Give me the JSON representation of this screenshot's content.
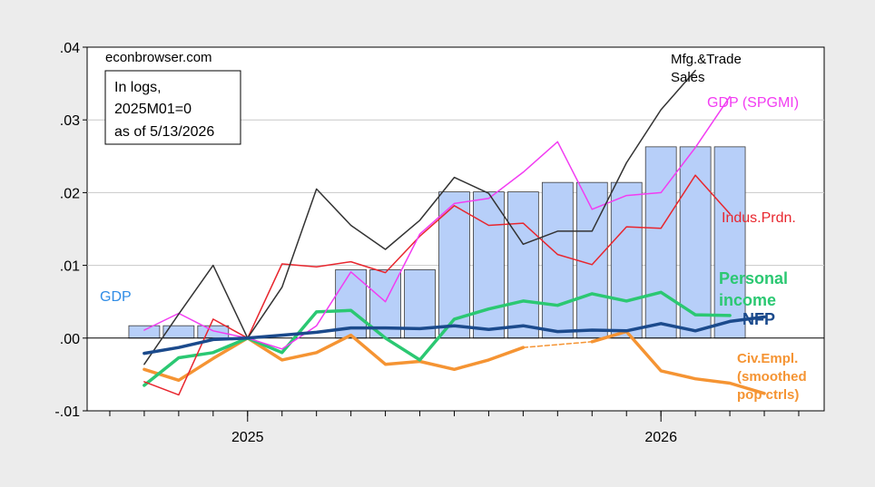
{
  "chart_data": {
    "type": "line",
    "title": "",
    "xlabel": "",
    "ylabel": "",
    "source_note": "econbrowser.com",
    "note_lines": [
      "In logs,",
      "2025M01=0",
      "as of 5/13/2026"
    ],
    "xlim": [
      "2024-09",
      "2026-12"
    ],
    "ylim": [
      -0.01,
      0.04
    ],
    "x_ticks": [
      "2025",
      "2026"
    ],
    "y_ticks": [
      {
        "value": 0.04,
        "label": ".04"
      },
      {
        "value": 0.03,
        "label": ".03"
      },
      {
        "value": 0.02,
        "label": ".02"
      },
      {
        "value": 0.01,
        "label": ".01"
      },
      {
        "value": 0.0,
        "label": ".00"
      },
      {
        "value": -0.01,
        "label": "-.01"
      }
    ],
    "grid": "horizontal",
    "colors": {
      "background": "#ececec",
      "plot_background": "#ffffff",
      "gdp_bar": "#b7cff9",
      "gdp_label": "#2f8ce6",
      "mfg": "#333333",
      "gdp_spgmi": "#f23cf2",
      "indus": "#e8262e",
      "personal_income": "#2bc872",
      "nfp": "#1b4a8c",
      "civ_empl": "#f59433"
    },
    "bars": {
      "name": "GDP",
      "quarters": [
        {
          "x": [
            "2024-10",
            "2024-11",
            "2024-12"
          ],
          "value": 0.0017
        },
        {
          "x": [
            "2025-01",
            "2025-02",
            "2025-03"
          ],
          "value": 0.0
        },
        {
          "x": [
            "2025-04",
            "2025-05",
            "2025-06"
          ],
          "value": 0.0094
        },
        {
          "x": [
            "2025-07",
            "2025-08",
            "2025-09"
          ],
          "value": 0.0201
        },
        {
          "x": [
            "2025-10",
            "2025-11",
            "2025-12"
          ],
          "value": 0.0214
        },
        {
          "x": [
            "2026-01",
            "2026-02",
            "2026-03"
          ],
          "value": 0.0263
        }
      ]
    },
    "series": [
      {
        "key": "mfg",
        "name": "Mfg.&Trade Sales",
        "label_lines": [
          "Mfg.&Trade",
          "Sales"
        ],
        "x": [
          "2024-10",
          "2024-11",
          "2024-12",
          "2025-01",
          "2025-02",
          "2025-03",
          "2025-04",
          "2025-05",
          "2025-06",
          "2025-07",
          "2025-08",
          "2025-09",
          "2025-10",
          "2025-11",
          "2025-12",
          "2026-01",
          "2026-02",
          "2026-03"
        ],
        "values": [
          -0.0036,
          0.0033,
          0.01,
          0.0,
          0.007,
          0.0205,
          0.0155,
          0.0122,
          0.0162,
          0.0221,
          0.0199,
          0.0129,
          0.0147,
          0.0147,
          0.0241,
          0.0314,
          0.0368,
          null
        ]
      },
      {
        "key": "gdp_spgmi",
        "name": "GDP (SPGMI)",
        "label_lines": [
          "GDP (SPGMI)"
        ],
        "x": [
          "2024-10",
          "2024-11",
          "2024-12",
          "2025-01",
          "2025-02",
          "2025-03",
          "2025-04",
          "2025-05",
          "2025-06",
          "2025-07",
          "2025-08",
          "2025-09",
          "2025-10",
          "2025-11",
          "2025-12",
          "2026-01",
          "2026-02",
          "2026-03"
        ],
        "values": [
          0.0011,
          0.0034,
          0.001,
          0.0,
          -0.0015,
          0.0017,
          0.0091,
          0.005,
          0.0143,
          0.0185,
          0.0192,
          0.0228,
          0.027,
          0.0177,
          0.0196,
          0.02,
          0.0262,
          0.0332
        ]
      },
      {
        "key": "indus",
        "name": "Indus.Prdn.",
        "label_lines": [
          "Indus.Prdn."
        ],
        "x": [
          "2024-10",
          "2024-11",
          "2024-12",
          "2025-01",
          "2025-02",
          "2025-03",
          "2025-04",
          "2025-05",
          "2025-06",
          "2025-07",
          "2025-08",
          "2025-09",
          "2025-10",
          "2025-11",
          "2025-12",
          "2026-01",
          "2026-02",
          "2026-03"
        ],
        "values": [
          -0.006,
          -0.0078,
          0.0026,
          0.0,
          0.0102,
          0.0098,
          0.0105,
          0.009,
          0.014,
          0.0182,
          0.0155,
          0.0158,
          0.0115,
          0.0101,
          0.0153,
          0.0151,
          0.0224,
          0.0171
        ]
      },
      {
        "key": "personal_income",
        "name": "Personal income",
        "label_lines": [
          "Personal",
          "income"
        ],
        "x": [
          "2024-10",
          "2024-11",
          "2024-12",
          "2025-01",
          "2025-02",
          "2025-03",
          "2025-04",
          "2025-05",
          "2025-06",
          "2025-07",
          "2025-08",
          "2025-09",
          "2025-10",
          "2025-11",
          "2025-12",
          "2026-01",
          "2026-02",
          "2026-03"
        ],
        "values": [
          -0.0065,
          -0.0027,
          -0.002,
          0.0,
          -0.002,
          0.0036,
          0.0038,
          0.0,
          -0.003,
          0.0026,
          0.004,
          0.0051,
          0.0045,
          0.0061,
          0.0051,
          0.0063,
          0.0032,
          0.0031
        ]
      },
      {
        "key": "nfp",
        "name": "NFP",
        "label_lines": [
          "NFP"
        ],
        "x": [
          "2024-10",
          "2024-11",
          "2024-12",
          "2025-01",
          "2025-02",
          "2025-03",
          "2025-04",
          "2025-05",
          "2025-06",
          "2025-07",
          "2025-08",
          "2025-09",
          "2025-10",
          "2025-11",
          "2025-12",
          "2026-01",
          "2026-02",
          "2026-03",
          "2026-04"
        ],
        "values": [
          -0.0021,
          -0.0013,
          -0.0002,
          0.0,
          0.0004,
          0.0008,
          0.0014,
          0.0014,
          0.0013,
          0.0017,
          0.0012,
          0.0017,
          0.0009,
          0.0011,
          0.001,
          0.002,
          0.001,
          0.0023,
          0.0029
        ]
      },
      {
        "key": "civ_empl",
        "name": "Civ.Empl. (smoothed pop ctrls)",
        "label_lines": [
          "Civ.Empl.",
          "(smoothed",
          "pop ctrls)"
        ],
        "x": [
          "2024-10",
          "2024-11",
          "2024-12",
          "2025-01",
          "2025-02",
          "2025-03",
          "2025-04",
          "2025-05",
          "2025-06",
          "2025-07",
          "2025-08",
          "2025-09",
          "2025-10",
          "2025-11",
          "2025-12",
          "2026-01",
          "2026-02",
          "2026-03",
          "2026-04"
        ],
        "values": [
          -0.0043,
          -0.0058,
          -0.0028,
          0.0,
          -0.003,
          -0.002,
          0.0004,
          -0.0036,
          -0.0032,
          -0.0043,
          -0.003,
          -0.0013,
          null,
          -0.0005,
          0.0009,
          -0.0045,
          -0.0056,
          -0.0062,
          -0.0076
        ]
      },
      {
        "key": "civ_empl_gap",
        "name": "Civ.Empl. interpolated",
        "style": "dashed",
        "x": [
          "2025-09",
          "2025-10",
          "2025-11"
        ],
        "values": [
          -0.0013,
          -0.0009,
          -0.0005
        ]
      }
    ]
  }
}
